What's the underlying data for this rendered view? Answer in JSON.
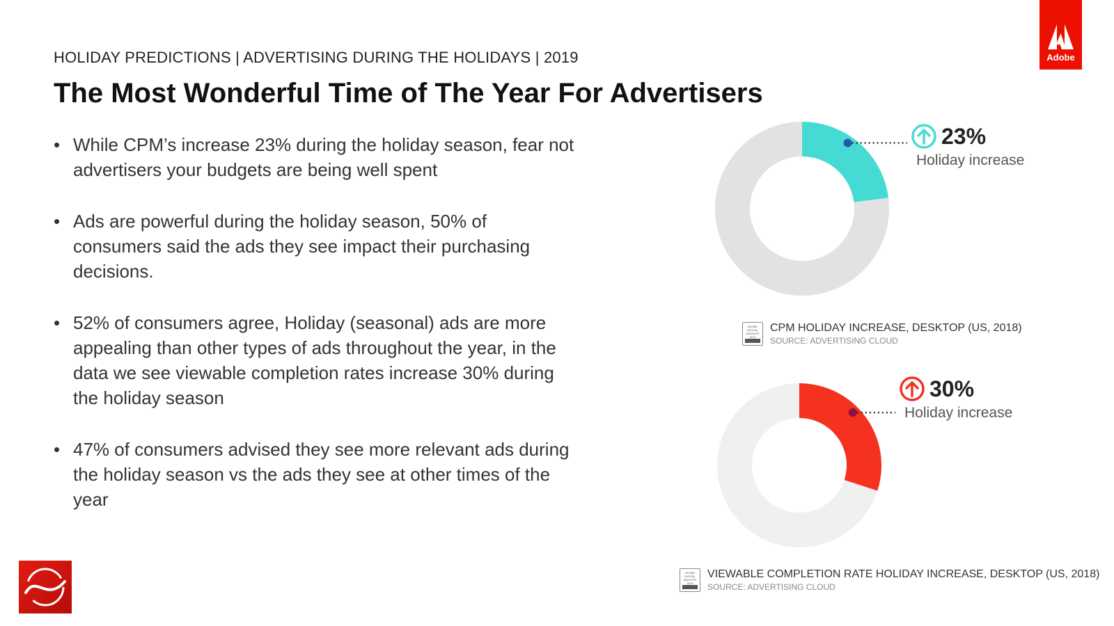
{
  "brand": {
    "word": "Adobe",
    "color": "#eb1000"
  },
  "header": "HOLIDAY PREDICTIONS | ADVERTISING DURING THE HOLIDAYS | 2019",
  "title": "The Most Wonderful Time of The Year For Advertisers",
  "bullets": [
    "While CPM’s increase 23% during the holiday season, fear not advertisers your budgets are being well spent",
    "Ads are powerful during the holiday season, 50% of consumers said the ads they see impact their purchasing decisions.",
    "52% of consumers agree, Holiday (seasonal) ads are more appealing than other types of ads throughout the year, in the data we see viewable completion rates increase 30% during the holiday season",
    "47% of consumers advised they see more relevant ads during the holiday season vs the ads they see at other times of the year"
  ],
  "chart_data": [
    {
      "type": "pie",
      "value": 23,
      "label": "23%",
      "sublabel": "Holiday increase",
      "title": "CPM HOLIDAY INCREASE, DESKTOP (US, 2018)",
      "source": "SOURCE: ADVERTISING CLOUD",
      "colors": {
        "highlight": "#45dbd4",
        "remainder": "#e2e2e2",
        "marker": "#1e5aa8"
      }
    },
    {
      "type": "pie",
      "value": 30,
      "label": "30%",
      "sublabel": "Holiday increase",
      "title": "VIEWABLE COMPLETION RATE HOLIDAY INCREASE, DESKTOP (US, 2018)",
      "source": "SOURCE: ADVERTISING CLOUD",
      "colors": {
        "highlight": "#f5311f",
        "remainder": "#f0f0f0",
        "marker": "#8a1340"
      }
    }
  ],
  "badge_text": "ADOBE DIGITAL INSIGHTS 2019",
  "icons": {
    "arrow1": "arrow-up-circle-icon",
    "arrow2": "arrow-up-circle-icon",
    "bottom_logo": "adobe-swoosh-logo-icon"
  }
}
